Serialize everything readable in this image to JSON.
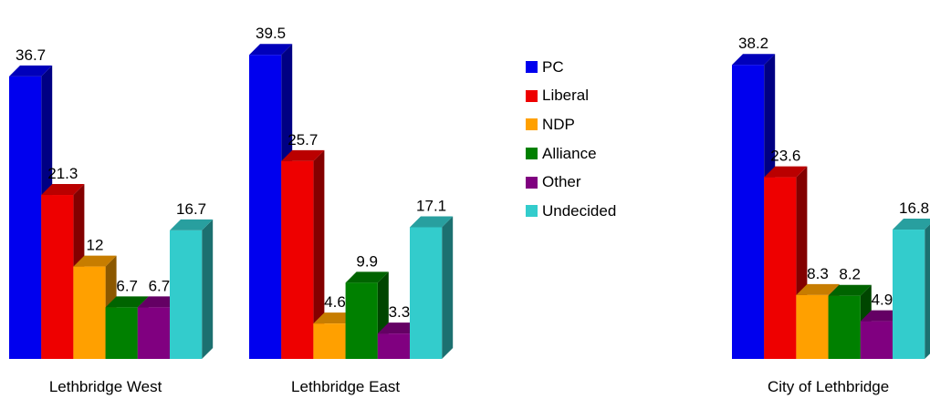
{
  "chart_data": {
    "type": "bar",
    "title": "",
    "xlabel": "",
    "ylabel": "",
    "ylim": [
      0,
      40
    ],
    "grid": false,
    "legend_position": "center-right",
    "categories": [
      "Lethbridge West",
      "Lethbridge East",
      "City of Lethbridge"
    ],
    "series": [
      {
        "name": "PC",
        "color": "#0000ee",
        "values": [
          36.7,
          39.5,
          38.2
        ]
      },
      {
        "name": "Liberal",
        "color": "#ee0000",
        "values": [
          21.3,
          25.7,
          23.6
        ]
      },
      {
        "name": "NDP",
        "color": "#ffa000",
        "values": [
          12,
          4.6,
          8.3
        ]
      },
      {
        "name": "Alliance",
        "color": "#008000",
        "values": [
          6.7,
          9.9,
          8.2
        ]
      },
      {
        "name": "Other",
        "color": "#800080",
        "values": [
          6.7,
          3.3,
          4.9
        ]
      },
      {
        "name": "Undecided",
        "color": "#33cccc",
        "values": [
          16.7,
          17.1,
          16.8
        ]
      }
    ]
  }
}
